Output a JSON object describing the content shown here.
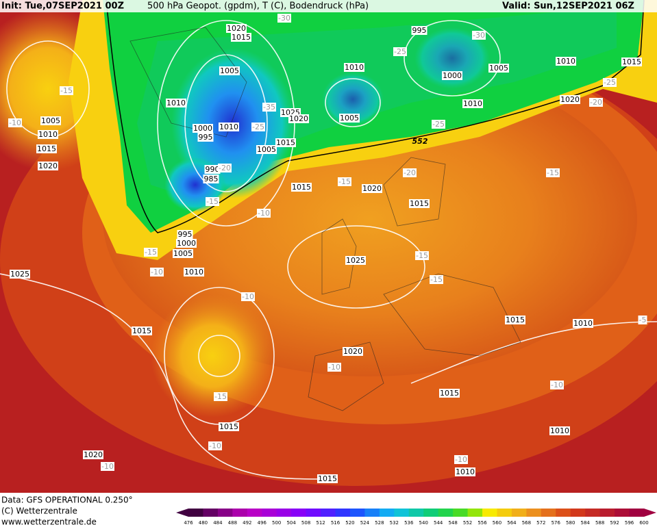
{
  "header": {
    "init": "Init: Tue,07SEP2021 00Z",
    "title": "500 hPa Geopot. (gpdm), T (C), Bodendruck (hPa)",
    "valid": "Valid: Sun,12SEP2021 06Z"
  },
  "map": {
    "pressure_labels": [
      "1020",
      "1015",
      "995",
      "1005",
      "1010",
      "1005",
      "1010",
      "1015",
      "1000",
      "1010",
      "1010",
      "1020",
      "1025",
      "1020",
      "1005",
      "1005",
      "1000",
      "1010",
      "995",
      "1010",
      "1015",
      "1005",
      "1015",
      "1020",
      "990",
      "985",
      "1015",
      "1020",
      "1015",
      "995",
      "1000",
      "1005",
      "1010",
      "1025",
      "1025",
      "1015",
      "1010",
      "1015",
      "1020",
      "1015",
      "1015",
      "1010",
      "1020",
      "1010",
      "1015"
    ],
    "temperature_labels": [
      "-30",
      "-25",
      "-30",
      "-15",
      "-35",
      "-25",
      "-10",
      "-25",
      "-20",
      "-25",
      "-20",
      "-15",
      "-20",
      "-15",
      "-15",
      "-10",
      "-15",
      "-15",
      "-15",
      "-10",
      "-10",
      "-10",
      "-15",
      "-10",
      "-10",
      "-10",
      "-10",
      "-5"
    ],
    "geopotential_labels": [
      "552"
    ]
  },
  "legend": {
    "levels": [
      476,
      480,
      484,
      488,
      492,
      496,
      500,
      504,
      508,
      512,
      516,
      520,
      524,
      528,
      532,
      536,
      540,
      544,
      548,
      552,
      556,
      560,
      564,
      568,
      572,
      576,
      580,
      584,
      588,
      592,
      596,
      600
    ]
  },
  "footer": {
    "data": "Data: GFS OPERATIONAL 0.250°",
    "copyright": "(C) Wetterzentrale",
    "url": "www.wetterzentrale.de"
  }
}
